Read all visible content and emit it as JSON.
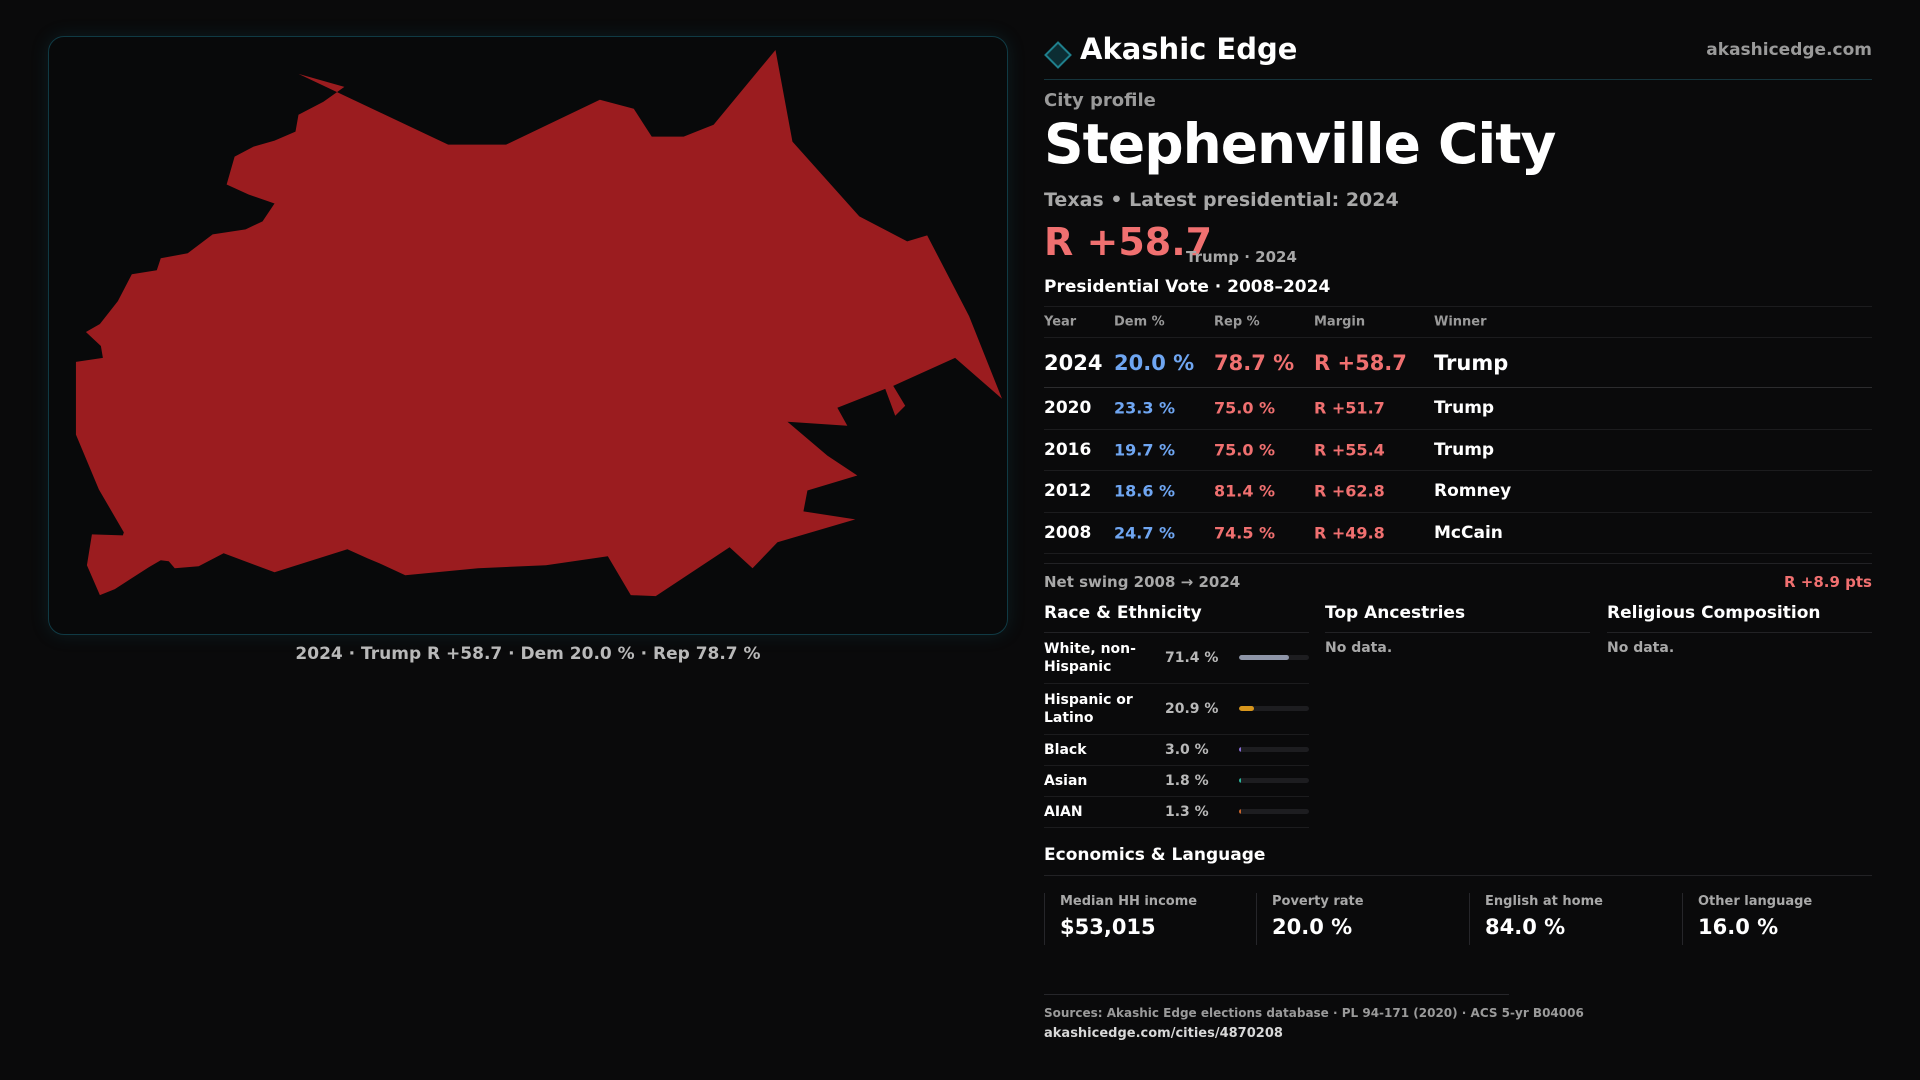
{
  "map": {
    "fill_color": "#9b1c1f",
    "caption": "2024 · Trump R +58.7 · Dem 20.0 % · Rep 78.7 %"
  },
  "brand": {
    "name": "Akashic Edge",
    "url": "akashicedge.com",
    "logo_icon": "diamond-icon"
  },
  "profile": {
    "eyebrow": "City profile",
    "city": "Stephenville City",
    "subline": "Texas • Latest presidential: 2024",
    "margin": "R +58.7",
    "margin_note": "Trump · 2024"
  },
  "vote": {
    "title": "Presidential Vote · 2008–2024",
    "columns": {
      "year": "Year",
      "dem": "Dem %",
      "rep": "Rep %",
      "margin": "Margin",
      "winner": "Winner"
    },
    "rows": [
      {
        "year": "2024",
        "dem": "20.0 %",
        "rep": "78.7 %",
        "margin": "R +58.7",
        "winner": "Trump"
      },
      {
        "year": "2020",
        "dem": "23.3 %",
        "rep": "75.0 %",
        "margin": "R +51.7",
        "winner": "Trump"
      },
      {
        "year": "2016",
        "dem": "19.7 %",
        "rep": "75.0 %",
        "margin": "R +55.4",
        "winner": "Trump"
      },
      {
        "year": "2012",
        "dem": "18.6 %",
        "rep": "81.4 %",
        "margin": "R +62.8",
        "winner": "Romney"
      },
      {
        "year": "2008",
        "dem": "24.7 %",
        "rep": "74.5 %",
        "margin": "R +49.8",
        "winner": "McCain"
      }
    ],
    "swing_label": "Net swing 2008 → 2024",
    "swing_value": "R +8.9 pts"
  },
  "race": {
    "title": "Race & Ethnicity",
    "rows": [
      {
        "label": "White, non-Hispanic",
        "pct": "71.4 %",
        "share": 0.714,
        "color": "#8e95a8"
      },
      {
        "label": "Hispanic or Latino",
        "pct": "20.9 %",
        "share": 0.209,
        "color": "#d8961c"
      },
      {
        "label": "Black",
        "pct": "3.0 %",
        "share": 0.03,
        "color": "#8a6fd8"
      },
      {
        "label": "Asian",
        "pct": "1.8 %",
        "share": 0.018,
        "color": "#2bb59a"
      },
      {
        "label": "AIAN",
        "pct": "1.3 %",
        "share": 0.013,
        "color": "#c8642a"
      }
    ]
  },
  "ancestries": {
    "title": "Top Ancestries",
    "empty": "No data."
  },
  "religion": {
    "title": "Religious Composition",
    "empty": "No data."
  },
  "economics": {
    "title": "Economics & Language",
    "cells": [
      {
        "label": "Median HH income",
        "value": "$53,015"
      },
      {
        "label": "Poverty rate",
        "value": "20.0 %"
      },
      {
        "label": "English at home",
        "value": "84.0 %"
      },
      {
        "label": "Other language",
        "value": "16.0 %"
      }
    ]
  },
  "footer": {
    "sources": "Sources: Akashic Edge elections database · PL 94-171 (2020) · ACS 5-yr B04006",
    "url": "akashicedge.com/cities/4870208"
  }
}
